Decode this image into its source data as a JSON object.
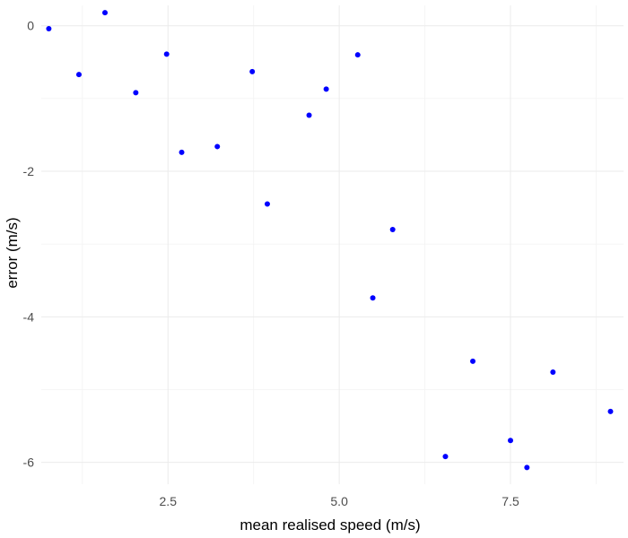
{
  "chart_data": {
    "type": "scatter",
    "title": "",
    "xlabel": "mean realised speed (m/s)",
    "ylabel": "error (m/s)",
    "xlim": [
      0.65,
      9.15
    ],
    "ylim": [
      -6.3,
      0.28
    ],
    "x_ticks": [
      2.5,
      5.0,
      7.5
    ],
    "x_tick_labels": [
      "2.5",
      "5.0",
      "7.5"
    ],
    "y_ticks": [
      0,
      -2,
      -4,
      -6
    ],
    "y_tick_labels": [
      "0",
      "-2",
      "-4",
      "-6"
    ],
    "x_minor_ticks": [
      1.25,
      3.75,
      6.25,
      8.75
    ],
    "y_minor_ticks": [
      -1,
      -3,
      -5
    ],
    "grid": true,
    "legend": "none",
    "point_color": "#0000ff",
    "points": [
      {
        "x": 0.76,
        "y": -0.04
      },
      {
        "x": 1.2,
        "y": -0.67
      },
      {
        "x": 1.58,
        "y": 0.18
      },
      {
        "x": 2.03,
        "y": -0.92
      },
      {
        "x": 2.48,
        "y": -0.39
      },
      {
        "x": 2.7,
        "y": -1.74
      },
      {
        "x": 3.22,
        "y": -1.66
      },
      {
        "x": 3.73,
        "y": -0.63
      },
      {
        "x": 3.95,
        "y": -2.45
      },
      {
        "x": 4.56,
        "y": -1.23
      },
      {
        "x": 4.81,
        "y": -0.87
      },
      {
        "x": 5.27,
        "y": -0.4
      },
      {
        "x": 5.49,
        "y": -3.74
      },
      {
        "x": 5.78,
        "y": -2.8
      },
      {
        "x": 6.55,
        "y": -5.92
      },
      {
        "x": 6.95,
        "y": -4.61
      },
      {
        "x": 7.5,
        "y": -5.7
      },
      {
        "x": 7.74,
        "y": -6.07
      },
      {
        "x": 8.12,
        "y": -4.76
      },
      {
        "x": 8.96,
        "y": -5.3
      }
    ]
  }
}
